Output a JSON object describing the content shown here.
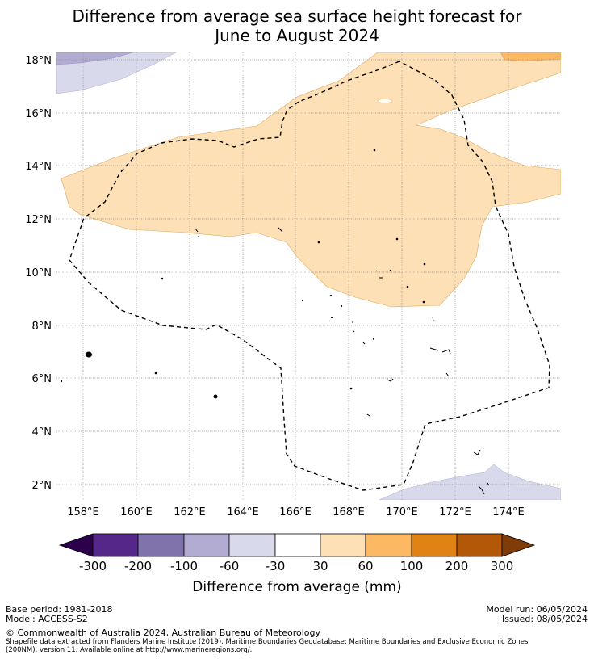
{
  "title_line1": "Difference from average sea surface height forecast for",
  "title_line2": "June to August 2024",
  "map": {
    "lat_labels": [
      "18°N",
      "16°N",
      "14°N",
      "12°N",
      "10°N",
      "8°N",
      "6°N",
      "4°N",
      "2°N"
    ],
    "lon_labels": [
      "158°E",
      "160°E",
      "162°E",
      "164°E",
      "166°E",
      "168°E",
      "170°E",
      "172°E",
      "174°E"
    ],
    "lat_range": [
      1.5,
      18.3
    ],
    "lon_range": [
      157.0,
      176.0
    ],
    "colors": {
      "dark_purple": "#542788",
      "mid_purple": "#8073ac",
      "light_purple": "#b2abd2",
      "pale_purple": "#d8daeb",
      "pale_orange": "#fee0b6",
      "light_orange": "#fdb863"
    }
  },
  "colorbar": {
    "ticks": [
      "-300",
      "-200",
      "-100",
      "-60",
      "-30",
      "30",
      "60",
      "100",
      "200",
      "300"
    ],
    "colors": [
      "#2d004b",
      "#542788",
      "#8073ac",
      "#b2abd2",
      "#d8daeb",
      "#ffffff",
      "#fee0b6",
      "#fdb863",
      "#e08214",
      "#b35806",
      "#7f3b08"
    ],
    "label": "Difference from average (mm)"
  },
  "footer": {
    "base_period": "Base period: 1981-2018",
    "model": "Model: ACCESS-S2",
    "model_run": "Model run: 06/05/2024",
    "issued": "Issued: 08/05/2024",
    "copyright": "© Commonwealth of Australia 2024, Australian Bureau of Meteorology",
    "shapefile_line1": "Shapefile data extracted from Flanders Marine Institute (2019), Maritime Boundaries Geodatabase: Maritime Boundaries and Exclusive Economic Zones",
    "shapefile_line2": "(200NM), version 11. Available online at http://www.marineregions.org/."
  }
}
